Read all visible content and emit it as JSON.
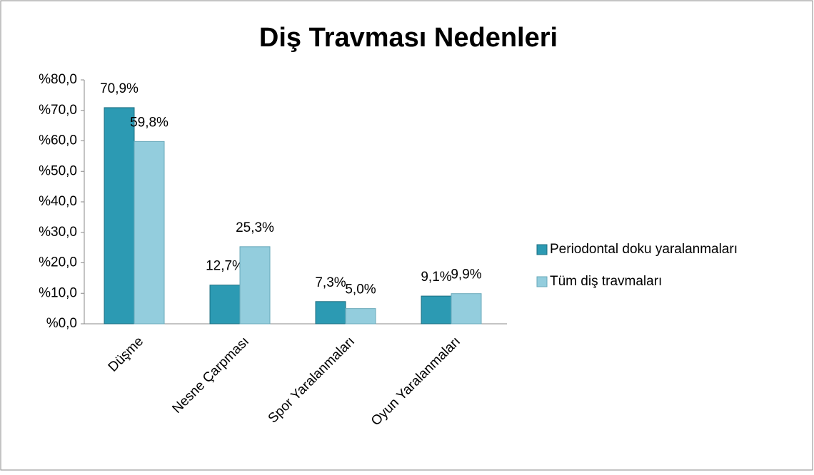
{
  "chart_data": {
    "type": "bar",
    "title": "Diş Travması Nedenleri",
    "categories": [
      "Düşme",
      "Nesne Çarpması",
      "Spor Yaralanmaları",
      "Oyun Yaralanmaları"
    ],
    "series": [
      {
        "name": "Periodontal doku yaralanmaları",
        "color": "#2c9ab3",
        "values": [
          70.9,
          12.7,
          7.3,
          9.1
        ],
        "value_labels": [
          "70,9%",
          "12,7%",
          "7,3%",
          "9,1%"
        ]
      },
      {
        "name": "Tüm diş travmaları",
        "color": "#93cddd",
        "values": [
          59.8,
          25.3,
          5.0,
          9.9
        ],
        "value_labels": [
          "59,8%",
          "25,3%",
          "5,0%",
          "9,9%"
        ]
      }
    ],
    "ylim": [
      0,
      80
    ],
    "yticks": [
      {
        "value": 0,
        "label": "%0,0"
      },
      {
        "value": 10,
        "label": "%10,0"
      },
      {
        "value": 20,
        "label": "%20,0"
      },
      {
        "value": 30,
        "label": "%30,0"
      },
      {
        "value": 40,
        "label": "%40,0"
      },
      {
        "value": 50,
        "label": "%50,0"
      },
      {
        "value": 60,
        "label": "%60,0"
      },
      {
        "value": 70,
        "label": "%70,0"
      },
      {
        "value": 80,
        "label": "%80,0"
      }
    ],
    "legend": "right"
  }
}
